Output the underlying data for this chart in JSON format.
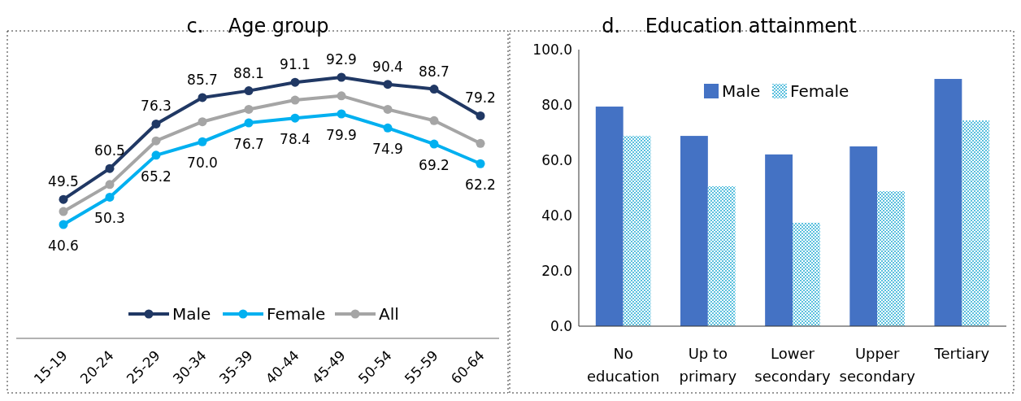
{
  "chart_data": [
    {
      "type": "line",
      "title": "c.    Age group",
      "categories": [
        "15-19",
        "20-24",
        "25-29",
        "30-34",
        "35-39",
        "40-44",
        "45-49",
        "50-54",
        "55-59",
        "60-64"
      ],
      "marker": "circle",
      "legend": "bottom",
      "series": [
        {
          "name": "Male",
          "color": "#203864",
          "values": [
            49.5,
            60.5,
            76.3,
            85.7,
            88.1,
            91.1,
            92.9,
            90.4,
            88.7,
            79.2
          ],
          "value_labels": [
            "49.5",
            "60.5",
            "76.3",
            "85.7",
            "88.1",
            "91.1",
            "92.9",
            "90.4",
            "88.7",
            "79.2"
          ]
        },
        {
          "name": "Female",
          "color": "#00b0f0",
          "values": [
            40.6,
            50.3,
            65.2,
            70.0,
            76.7,
            78.4,
            79.9,
            74.9,
            69.2,
            62.2
          ],
          "value_labels": [
            "40.6",
            "50.3",
            "65.2",
            "70.0",
            "76.7",
            "78.4",
            "79.9",
            "74.9",
            "69.2",
            "62.2"
          ]
        },
        {
          "name": "All",
          "color": "#a5a5a5",
          "values": [
            45.2,
            54.8,
            70.3,
            77.1,
            81.5,
            84.8,
            86.3,
            81.5,
            77.5,
            69.4
          ]
        }
      ]
    },
    {
      "type": "bar",
      "title": "d.    Education attainment",
      "categories": [
        "No education",
        "Up to primary",
        "Lower secondary",
        "Upper secondary",
        "Tertiary"
      ],
      "ylim": [
        0,
        100
      ],
      "yticks": [
        {
          "value": 0,
          "label": "0.0"
        },
        {
          "value": 20,
          "label": "20.0"
        },
        {
          "value": 40,
          "label": "40.0"
        },
        {
          "value": 60,
          "label": "60.0"
        },
        {
          "value": 80,
          "label": "80.0"
        },
        {
          "value": 100,
          "label": "100.0"
        }
      ],
      "legend": "top",
      "series": [
        {
          "name": "Male",
          "color": "#4472c4",
          "values": [
            79.4,
            68.8,
            62.1,
            65.0,
            89.4
          ]
        },
        {
          "name": "Female",
          "color": "#5bc0de",
          "values": [
            68.8,
            50.6,
            37.4,
            48.8,
            74.4
          ]
        }
      ]
    }
  ]
}
